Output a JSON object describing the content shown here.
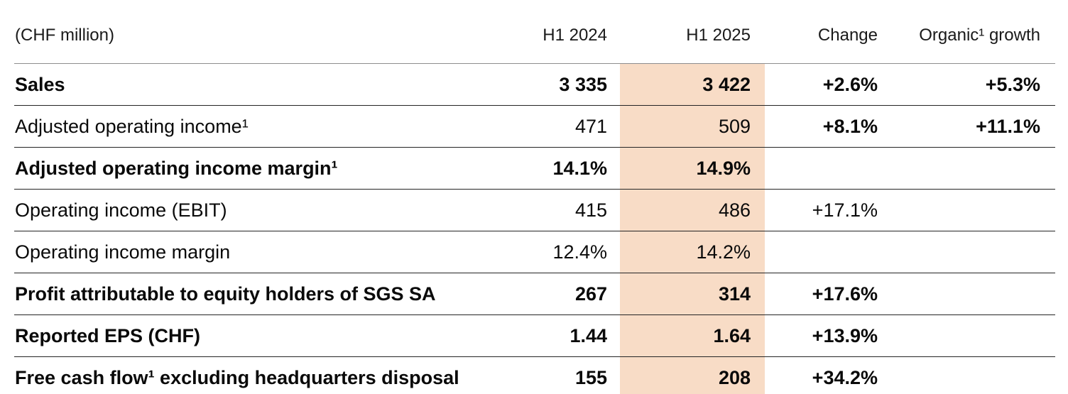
{
  "table": {
    "unit_label": "(CHF million)",
    "highlight_color": "#f8dcc6",
    "columns": [
      "H1 2024",
      "H1 2025",
      "Change",
      "Organic¹ growth"
    ],
    "rows": [
      {
        "label": "Sales",
        "h1_2024": "3 335",
        "h1_2025": "3 422",
        "change": "+2.6%",
        "organic_growth": "+5.3%",
        "label_bold": true,
        "values_bold": true,
        "change_bold": true
      },
      {
        "label": "Adjusted operating income¹",
        "h1_2024": "471",
        "h1_2025": "509",
        "change": "+8.1%",
        "organic_growth": "+11.1%",
        "label_bold": false,
        "values_bold": false,
        "change_bold": true
      },
      {
        "label": "Adjusted operating income margin¹",
        "h1_2024": "14.1%",
        "h1_2025": "14.9%",
        "change": "",
        "organic_growth": "",
        "label_bold": true,
        "values_bold": true,
        "change_bold": true
      },
      {
        "label": "Operating income (EBIT)",
        "h1_2024": "415",
        "h1_2025": "486",
        "change": "+17.1%",
        "organic_growth": "",
        "label_bold": false,
        "values_bold": false,
        "change_bold": false
      },
      {
        "label": "Operating income margin",
        "h1_2024": "12.4%",
        "h1_2025": "14.2%",
        "change": "",
        "organic_growth": "",
        "label_bold": false,
        "values_bold": false,
        "change_bold": false
      },
      {
        "label": "Profit attributable to equity holders of SGS SA",
        "h1_2024": "267",
        "h1_2025": "314",
        "change": "+17.6%",
        "organic_growth": "",
        "label_bold": true,
        "values_bold": true,
        "change_bold": true
      },
      {
        "label": "Reported EPS (CHF)",
        "h1_2024": "1.44",
        "h1_2025": "1.64",
        "change": "+13.9%",
        "organic_growth": "",
        "label_bold": true,
        "values_bold": true,
        "change_bold": true
      },
      {
        "label": "Free cash flow¹ excluding headquarters disposal",
        "h1_2024": "155",
        "h1_2025": "208",
        "change": "+34.2%",
        "organic_growth": "",
        "label_bold": true,
        "values_bold": true,
        "change_bold": true
      }
    ]
  }
}
